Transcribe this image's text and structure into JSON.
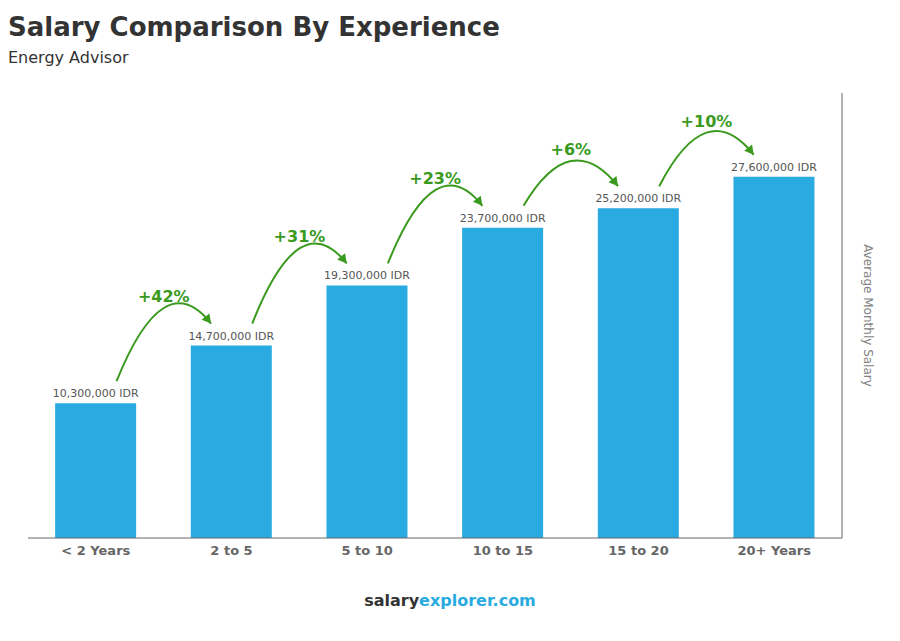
{
  "chart_data": {
    "type": "bar",
    "title": "Salary Comparison By Experience",
    "subtitle": "Energy Advisor",
    "categories": [
      "< 2 Years",
      "2 to 5",
      "5 to 10",
      "10 to 15",
      "15 to 20",
      "20+ Years"
    ],
    "values": [
      10300000,
      14700000,
      19300000,
      23700000,
      25200000,
      27600000
    ],
    "value_labels": [
      "10,300,000 IDR",
      "14,700,000 IDR",
      "19,300,000 IDR",
      "23,700,000 IDR",
      "25,200,000 IDR",
      "27,600,000 IDR"
    ],
    "data_labels": true,
    "annotations": [
      "+42%",
      "+31%",
      "+23%",
      "+6%",
      "+10%"
    ],
    "ylabel": "Average Monthly Salary",
    "footer": [
      "salary",
      "explorer.com"
    ],
    "color": "#29ABE2",
    "ylim": [
      0,
      34000000
    ],
    "tick_labels": "x",
    "grid": false
  }
}
